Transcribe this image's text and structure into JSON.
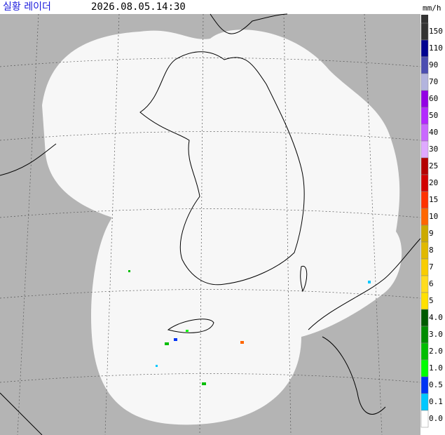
{
  "header": {
    "title": "실황 레이더",
    "timestamp": "2026.08.05.14:30",
    "unit": "mm/h"
  },
  "legend": {
    "items": [
      {
        "label": "150",
        "color": "#333333"
      },
      {
        "label": "110",
        "color": "#000390"
      },
      {
        "label": "90",
        "color": "#4c4eb1"
      },
      {
        "label": "70",
        "color": "#b3b4de"
      },
      {
        "label": "60",
        "color": "#9300e4"
      },
      {
        "label": "50",
        "color": "#b329ff"
      },
      {
        "label": "40",
        "color": "#c969ff"
      },
      {
        "label": "30",
        "color": "#dfa9ff"
      },
      {
        "label": "25",
        "color": "#b40000"
      },
      {
        "label": "20",
        "color": "#d20000"
      },
      {
        "label": "15",
        "color": "#ff3200"
      },
      {
        "label": "10",
        "color": "#ff6600"
      },
      {
        "label": "9",
        "color": "#ccaa00"
      },
      {
        "label": "8",
        "color": "#e0b900"
      },
      {
        "label": "7",
        "color": "#f9cd00"
      },
      {
        "label": "6",
        "color": "#ffdc1f"
      },
      {
        "label": "5",
        "color": "#ffe100"
      },
      {
        "label": "4.0",
        "color": "#005a00"
      },
      {
        "label": "3.0",
        "color": "#008c00"
      },
      {
        "label": "2.0",
        "color": "#00be00"
      },
      {
        "label": "1.0",
        "color": "#00ff00"
      },
      {
        "label": "0.5",
        "color": "#0033f5"
      },
      {
        "label": "0.1",
        "color": "#00c8ff"
      },
      {
        "label": "0.0",
        "color": "#ffffff"
      }
    ]
  }
}
